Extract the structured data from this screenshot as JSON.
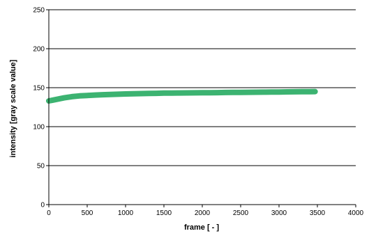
{
  "chart_data": {
    "type": "scatter",
    "title": "",
    "xlabel": "frame [ - ]",
    "ylabel": "intensity [gray scale value]",
    "xlim": [
      0,
      4000
    ],
    "ylim": [
      0,
      250
    ],
    "xticks": [
      0,
      500,
      1000,
      1500,
      2000,
      2500,
      3000,
      3500,
      4000
    ],
    "yticks": [
      0,
      50,
      100,
      150,
      200,
      250
    ],
    "grid": "horizontal",
    "legend": "none",
    "series": [
      {
        "color": "#3cb371",
        "x": [
          0,
          50,
          100,
          150,
          200,
          300,
          400,
          500,
          600,
          700,
          800,
          900,
          1000,
          1100,
          1200,
          1300,
          1400,
          1500,
          1600,
          1700,
          1800,
          1900,
          2000,
          2100,
          2200,
          2300,
          2400,
          2500,
          2600,
          2700,
          2800,
          2900,
          3000,
          3100,
          3200,
          3300,
          3400,
          3470
        ],
        "y": [
          133,
          134,
          135,
          136,
          137,
          138.5,
          139.5,
          140,
          140.5,
          141,
          141.3,
          141.6,
          142,
          142.2,
          142.4,
          142.6,
          142.8,
          143,
          143.1,
          143.2,
          143.3,
          143.4,
          143.5,
          143.6,
          143.7,
          143.8,
          143.9,
          144,
          144.1,
          144.2,
          144.3,
          144.4,
          144.5,
          144.6,
          144.7,
          144.8,
          144.9,
          145
        ]
      }
    ]
  }
}
